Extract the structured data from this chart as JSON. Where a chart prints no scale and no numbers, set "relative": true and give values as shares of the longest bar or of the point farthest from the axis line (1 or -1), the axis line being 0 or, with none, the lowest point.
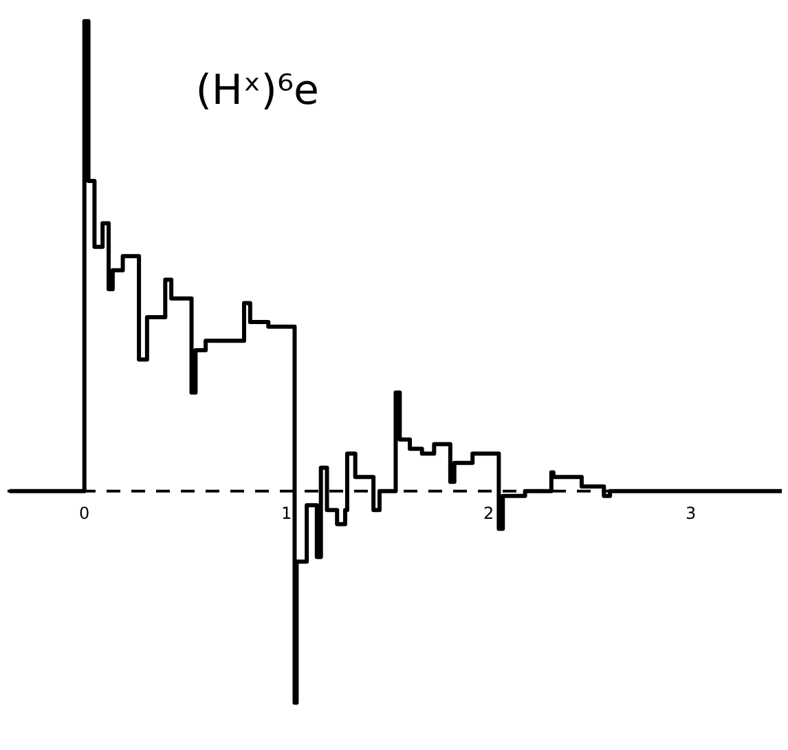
{
  "chart_data": {
    "type": "step",
    "title": "(Hˣ)⁶e",
    "relative": true,
    "grid": false,
    "tick_labels": "x",
    "xlim": [
      -0.38,
      3.45
    ],
    "xticks": [
      0,
      1,
      2,
      3
    ],
    "ref_lines": [
      {
        "axis": "y",
        "value": 0,
        "line_style": "dashed",
        "color": "#000000"
      }
    ],
    "series": [
      {
        "color": "#000000",
        "x": [
          -0.37,
          0,
          0.02,
          0.05,
          0.09,
          0.12,
          0.14,
          0.19,
          0.27,
          0.31,
          0.4,
          0.43,
          0.53,
          0.55,
          0.6,
          0.79,
          0.82,
          0.91,
          1.04,
          1.05,
          1.1,
          1.15,
          1.17,
          1.2,
          1.25,
          1.29,
          1.3,
          1.34,
          1.43,
          1.46,
          1.54,
          1.56,
          1.61,
          1.67,
          1.73,
          1.81,
          1.83,
          1.92,
          2.05,
          2.07,
          2.18,
          2.31,
          2.32,
          2.46,
          2.57,
          2.6,
          3.45
        ],
        "values": [
          0,
          1,
          0.66,
          0.52,
          0.57,
          0.43,
          0.47,
          0.5,
          0.28,
          0.37,
          0.45,
          0.41,
          0.21,
          0.3,
          0.32,
          0.4,
          0.36,
          0.35,
          -0.45,
          -0.15,
          -0.03,
          -0.14,
          0.05,
          -0.04,
          -0.07,
          -0.04,
          0.08,
          0.03,
          -0.04,
          0.0,
          0.21,
          0.11,
          0.09,
          0.08,
          0.1,
          0.02,
          0.06,
          0.08,
          -0.08,
          -0.01,
          0.0,
          0.04,
          0.03,
          0.01,
          -0.01,
          0.0,
          0.0
        ]
      }
    ]
  }
}
